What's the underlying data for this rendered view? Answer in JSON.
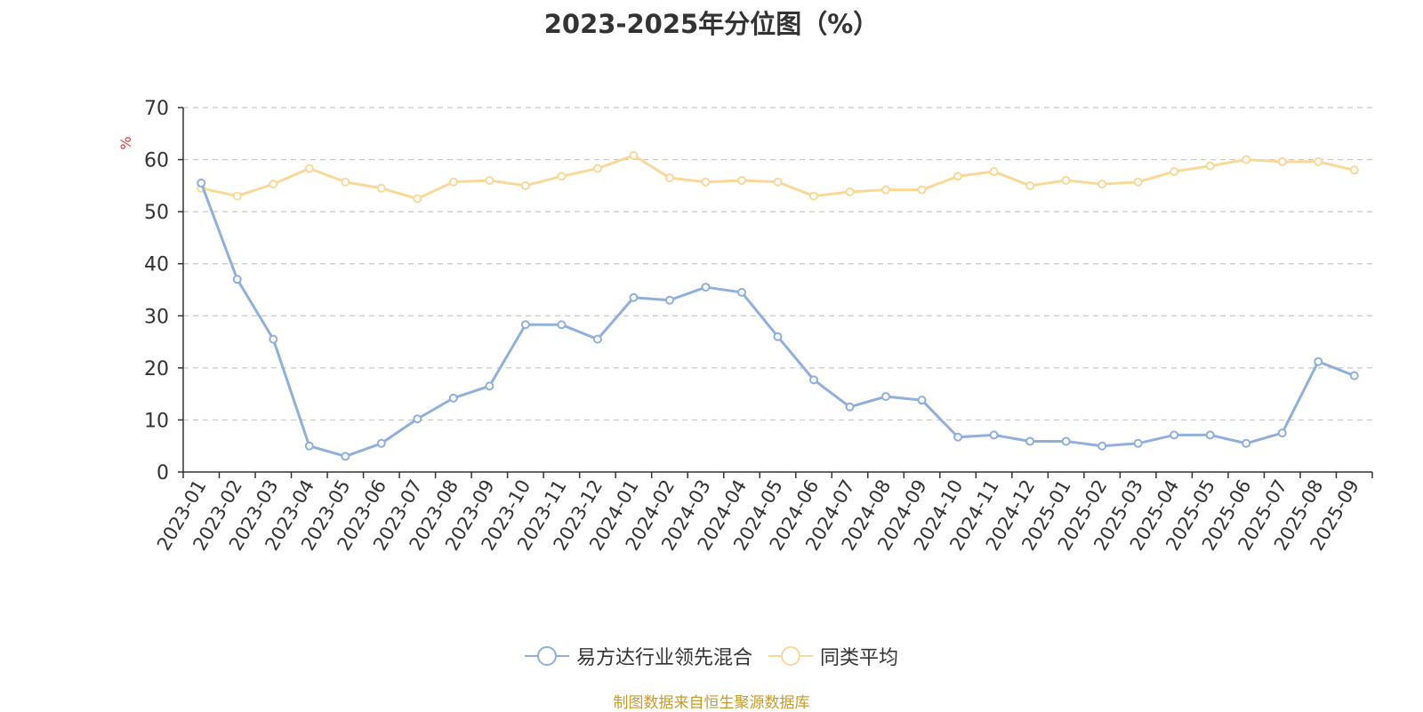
{
  "title": "2023-2025年分位图（%）",
  "source_note": "制图数据来自恒生聚源数据库",
  "colors": {
    "series1": "#8fb0dc",
    "series2": "#f9d898",
    "unit_label": "#e53935",
    "source": "#c89a2b"
  },
  "chart_data": {
    "type": "line",
    "title": "2023-2025年分位图（%）",
    "ylabel": "%",
    "xlabel": "",
    "ylim": [
      0,
      70
    ],
    "yticks": [
      0,
      10,
      20,
      30,
      40,
      50,
      60,
      70
    ],
    "grid": true,
    "legend_position": "bottom",
    "categories": [
      "2023-01",
      "2023-02",
      "2023-03",
      "2023-04",
      "2023-05",
      "2023-06",
      "2023-07",
      "2023-08",
      "2023-09",
      "2023-10",
      "2023-11",
      "2023-12",
      "2024-01",
      "2024-02",
      "2024-03",
      "2024-04",
      "2024-05",
      "2024-06",
      "2024-07",
      "2024-08",
      "2024-09",
      "2024-10",
      "2024-11",
      "2024-12",
      "2025-01",
      "2025-02",
      "2025-03",
      "2025-04",
      "2025-05",
      "2025-06",
      "2025-07",
      "2025-08",
      "2025-09"
    ],
    "series": [
      {
        "name": "易方达行业领先混合",
        "values": [
          55.5,
          37.0,
          25.5,
          5.0,
          3.0,
          5.5,
          10.2,
          14.2,
          16.5,
          28.3,
          28.3,
          25.5,
          33.5,
          33.0,
          35.5,
          34.5,
          26.0,
          17.7,
          12.5,
          14.5,
          13.8,
          6.7,
          7.1,
          5.9,
          5.9,
          5.0,
          5.5,
          7.1,
          7.1,
          5.5,
          7.5,
          21.2,
          18.5
        ]
      },
      {
        "name": "同类平均",
        "values": [
          54.5,
          53.0,
          55.3,
          58.3,
          55.7,
          54.5,
          52.5,
          55.7,
          56.0,
          55.0,
          56.8,
          58.3,
          60.8,
          56.5,
          55.7,
          56.0,
          55.7,
          53.0,
          53.8,
          54.2,
          54.2,
          56.8,
          57.7,
          55.0,
          56.0,
          55.3,
          55.7,
          57.7,
          58.8,
          60.0,
          59.6,
          59.6,
          58.0
        ]
      }
    ]
  }
}
